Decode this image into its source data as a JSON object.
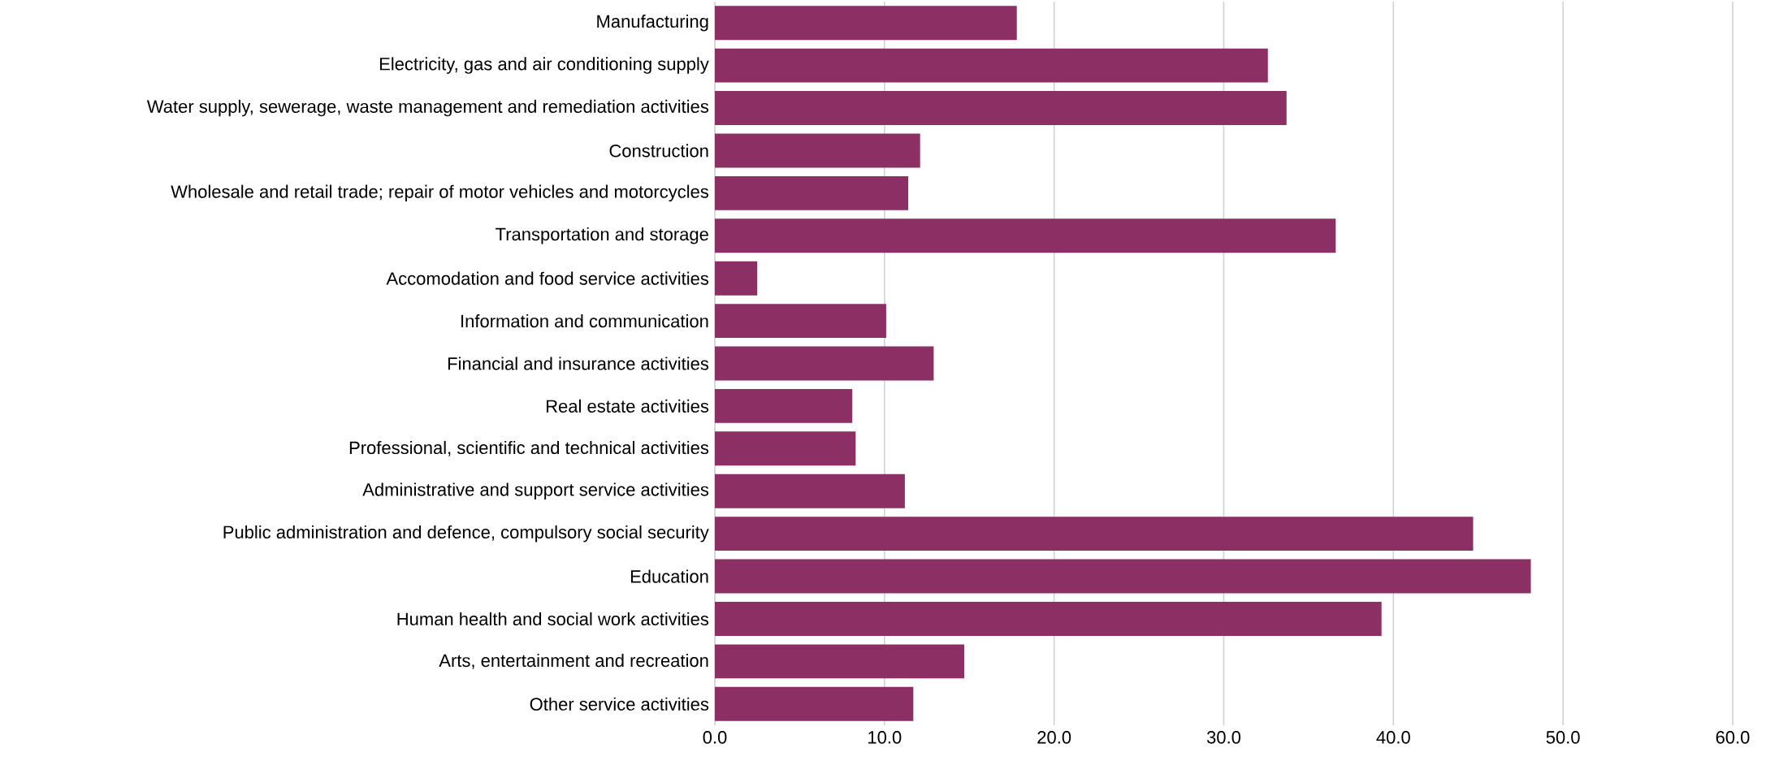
{
  "chart_data": {
    "type": "bar",
    "orientation": "horizontal",
    "color": "#8b2f65",
    "grid": "x",
    "categories": [
      "Manufacturing",
      "Electricity, gas and air conditioning supply",
      "Water supply, sewerage, waste management and remediation activities",
      "Construction",
      "Wholesale and retail trade; repair of motor vehicles and motorcycles",
      "Transportation and storage",
      "Accomodation and food service activities",
      "Information and communication",
      "Financial and insurance activities",
      "Real estate activities",
      "Professional, scientific and technical activities",
      "Administrative and support service activities",
      "Public administration and defence, compulsory social security",
      "Education",
      "Human health and social work activities",
      "Arts, entertainment and recreation",
      "Other service activities"
    ],
    "values": [
      17.8,
      32.6,
      33.7,
      12.1,
      11.4,
      36.6,
      2.5,
      10.1,
      12.9,
      8.1,
      8.3,
      11.2,
      44.7,
      48.1,
      39.3,
      14.7,
      11.7
    ],
    "xlim": [
      0,
      60
    ],
    "xticks": [
      {
        "value": 0,
        "label": "0.0"
      },
      {
        "value": 10,
        "label": "10.0"
      },
      {
        "value": 20,
        "label": "20.0"
      },
      {
        "value": 30,
        "label": "30.0"
      },
      {
        "value": 40,
        "label": "40.0"
      },
      {
        "value": 50,
        "label": "50.0"
      },
      {
        "value": 60,
        "label": "60.0"
      }
    ]
  }
}
